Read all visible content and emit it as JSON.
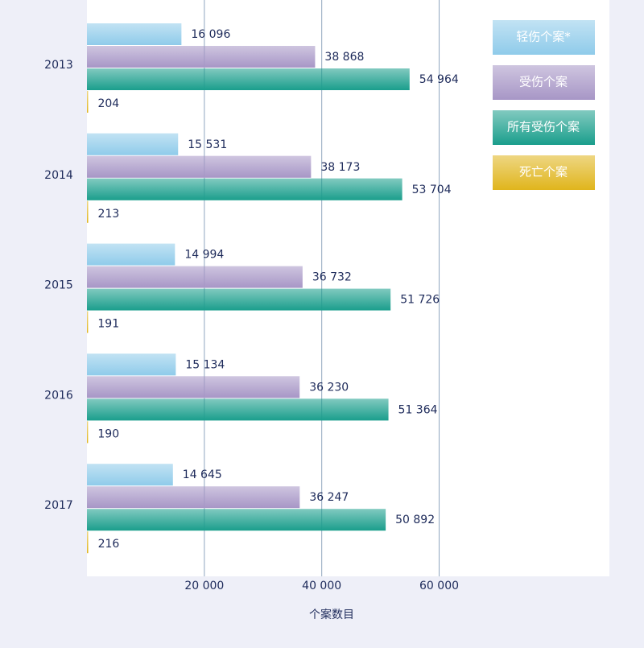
{
  "chart_data": {
    "type": "bar",
    "orientation": "horizontal",
    "x_label": "个案数目",
    "categories": [
      "2013",
      "2014",
      "2015",
      "2016",
      "2017"
    ],
    "series": [
      {
        "name": "轻伤个案*",
        "color": "#8fcbea",
        "values": [
          16096,
          15531,
          14994,
          15134,
          14645
        ],
        "value_labels": [
          "16 096",
          "15 531",
          "14 994",
          "15 134",
          "14 645"
        ]
      },
      {
        "name": "受伤个案",
        "color": "#a796c6",
        "values": [
          38868,
          38173,
          36732,
          36230,
          36247
        ],
        "value_labels": [
          "38 868",
          "38 173",
          "36 732",
          "36 230",
          "36 247"
        ]
      },
      {
        "name": "所有受伤个案",
        "color": "#1a9e8c",
        "values": [
          54964,
          53704,
          51726,
          51364,
          50892
        ],
        "value_labels": [
          "54 964",
          "53 704",
          "51 726",
          "51 364",
          "50 892"
        ]
      },
      {
        "name": "死亡个案",
        "color": "#e0b51c",
        "values": [
          204,
          213,
          191,
          190,
          216
        ]
      }
    ],
    "xlim": [
      0,
      89000
    ],
    "xticks": [
      {
        "value": 20000,
        "label": "20 000"
      },
      {
        "value": 40000,
        "label": "40 000"
      },
      {
        "value": 60000,
        "label": "60 000"
      }
    ],
    "grid": true,
    "legend": "top-right"
  }
}
